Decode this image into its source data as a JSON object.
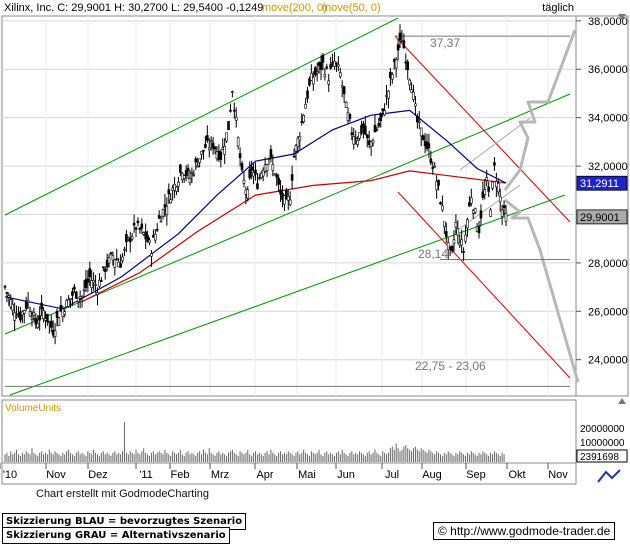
{
  "chart_data": {
    "type": "candlestick",
    "title": "Xilinx, Inc.",
    "ohlc_text": "C: 29,9001 H: 30,2700 L: 29,5400 -0,1249",
    "ma_legend": [
      {
        "label": "move(200, 0)",
        "color": "#cc0000"
      },
      {
        "label": "move(50, 0)",
        "color": "#000088"
      }
    ],
    "period": "täglich",
    "y_ticks": [
      "38,0000",
      "36,0000",
      "34,0000",
      "32,0000",
      "30,0000",
      "28,0000",
      "26,0000",
      "24,0000"
    ],
    "ylim": [
      22.5,
      38.2
    ],
    "x_labels": [
      "'10",
      "Nov",
      "Dez",
      "'11",
      "Feb",
      "Mrz",
      "Apr",
      "Mai",
      "Jun",
      "Jul",
      "Aug",
      "Sep",
      "Okt",
      "Nov"
    ],
    "price_boxes": [
      {
        "value": "31,2911",
        "y": 31.2911,
        "color": "#2222cc",
        "text": "#ffffff"
      },
      {
        "value": "29,9001",
        "y": 29.9001,
        "color": "#aaaaaa",
        "text": "#000000"
      }
    ],
    "annotations": [
      "37,37",
      "28,14",
      "22,75 - 23,06"
    ],
    "levels": [
      37.37,
      28.14,
      22.9
    ],
    "close_path": [
      [
        0,
        27.0
      ],
      [
        4,
        26.2
      ],
      [
        8,
        25.8
      ],
      [
        12,
        26.4
      ],
      [
        16,
        25.5
      ],
      [
        20,
        26.0
      ],
      [
        25,
        25.2
      ],
      [
        28,
        25.9
      ],
      [
        32,
        26.3
      ],
      [
        36,
        26.8
      ],
      [
        40,
        26.6
      ],
      [
        44,
        27.4
      ],
      [
        48,
        27.0
      ],
      [
        52,
        27.8
      ],
      [
        56,
        28.3
      ],
      [
        60,
        28.0
      ],
      [
        64,
        28.9
      ],
      [
        68,
        29.5
      ],
      [
        72,
        29.2
      ],
      [
        76,
        28.6
      ],
      [
        80,
        29.8
      ],
      [
        84,
        30.5
      ],
      [
        88,
        31.2
      ],
      [
        92,
        31.9
      ],
      [
        96,
        31.5
      ],
      [
        100,
        32.2
      ],
      [
        104,
        32.8
      ],
      [
        108,
        32.9
      ],
      [
        112,
        32.4
      ],
      [
        116,
        33.6
      ],
      [
        118,
        35.2
      ],
      [
        120,
        33.8
      ],
      [
        123,
        31.6
      ],
      [
        126,
        30.8
      ],
      [
        128,
        31.9
      ],
      [
        131,
        31.3
      ],
      [
        134,
        32.0
      ],
      [
        137,
        32.4
      ],
      [
        140,
        31.8
      ],
      [
        143,
        30.8
      ],
      [
        146,
        30.4
      ],
      [
        148,
        30.8
      ],
      [
        150,
        32.4
      ],
      [
        153,
        33.4
      ],
      [
        156,
        34.6
      ],
      [
        159,
        35.6
      ],
      [
        162,
        35.9
      ],
      [
        165,
        36.2
      ],
      [
        168,
        35.7
      ],
      [
        171,
        36.3
      ],
      [
        174,
        35.8
      ],
      [
        177,
        34.4
      ],
      [
        180,
        33.4
      ],
      [
        183,
        33.2
      ],
      [
        186,
        33.6
      ],
      [
        189,
        32.8
      ],
      [
        192,
        33.4
      ],
      [
        195,
        33.8
      ],
      [
        198,
        34.8
      ],
      [
        201,
        35.8
      ],
      [
        204,
        36.8
      ],
      [
        206,
        37.3
      ],
      [
        208,
        36.5
      ],
      [
        211,
        35.4
      ],
      [
        214,
        33.8
      ],
      [
        217,
        33.2
      ],
      [
        220,
        32.6
      ],
      [
        223,
        31.8
      ],
      [
        226,
        30.6
      ],
      [
        228,
        29.8
      ],
      [
        230,
        28.6
      ],
      [
        232,
        28.3
      ],
      [
        234,
        29.6
      ],
      [
        236,
        29.0
      ],
      [
        238,
        28.5
      ],
      [
        240,
        29.8
      ],
      [
        242,
        30.8
      ],
      [
        244,
        30.0
      ],
      [
        246,
        29.4
      ],
      [
        248,
        30.6
      ],
      [
        250,
        31.3
      ],
      [
        252,
        30.4
      ],
      [
        254,
        31.9
      ],
      [
        256,
        31.2
      ],
      [
        258,
        30.2
      ],
      [
        260,
        29.9
      ]
    ],
    "sma200_path": [
      [
        40,
        26.4
      ],
      [
        70,
        27.6
      ],
      [
        100,
        29.3
      ],
      [
        130,
        30.8
      ],
      [
        160,
        31.2
      ],
      [
        190,
        31.4
      ],
      [
        210,
        31.8
      ],
      [
        230,
        31.6
      ],
      [
        260,
        31.3
      ]
    ],
    "sma50_path": [
      [
        0,
        26.6
      ],
      [
        30,
        26.1
      ],
      [
        60,
        27.4
      ],
      [
        90,
        29.2
      ],
      [
        110,
        30.8
      ],
      [
        130,
        32.2
      ],
      [
        150,
        32.5
      ],
      [
        170,
        33.5
      ],
      [
        190,
        34.1
      ],
      [
        210,
        34.3
      ],
      [
        230,
        33.0
      ],
      [
        245,
        31.9
      ],
      [
        260,
        31.3
      ]
    ],
    "volume_label": "VolumeUnits",
    "volume_ticks": [
      "20000000",
      "10000000"
    ],
    "volume_last": "2391698",
    "volume_values": [
      5,
      6,
      4,
      7,
      5,
      6,
      8,
      5,
      4,
      6,
      5,
      7,
      6,
      5,
      9,
      6,
      5,
      4,
      6,
      7,
      5,
      6,
      5,
      8,
      6,
      5,
      7,
      6,
      5,
      4,
      6,
      5,
      7,
      8,
      6,
      5,
      4,
      6,
      7,
      5,
      6,
      5,
      4,
      7,
      6,
      5,
      8,
      6,
      5,
      4,
      6,
      7,
      5,
      6,
      5,
      4,
      6,
      7,
      5,
      6,
      5,
      7,
      26,
      6,
      5,
      7,
      6,
      5,
      8,
      6,
      5,
      7,
      9,
      6,
      5,
      4,
      6,
      7,
      5,
      6,
      7,
      6,
      5,
      8,
      6,
      5,
      4,
      7,
      6,
      5,
      6,
      8,
      5,
      4,
      6,
      7,
      5,
      6,
      5,
      4,
      6,
      7,
      5,
      8,
      6,
      5,
      9,
      6,
      5,
      4,
      6,
      7,
      5,
      6,
      5,
      4,
      6,
      7,
      8,
      6,
      5,
      4,
      7,
      6,
      5,
      6,
      8,
      5,
      4,
      6,
      7,
      5,
      6,
      5,
      4,
      6,
      7,
      5,
      8,
      6,
      5,
      4,
      6,
      7,
      5,
      6,
      5,
      7,
      6,
      5,
      4,
      6,
      7,
      5,
      6,
      8,
      6,
      5,
      4,
      7,
      6,
      5,
      6,
      8,
      5,
      4,
      6,
      7,
      5,
      6,
      5,
      4,
      6,
      7,
      5,
      8,
      6,
      5,
      4,
      6,
      7,
      5,
      6,
      5,
      7,
      6,
      5,
      4,
      6,
      7,
      5,
      6,
      8,
      6,
      5,
      4,
      7,
      6,
      5,
      6,
      9,
      10,
      8,
      12,
      9,
      7,
      8,
      10,
      11,
      9,
      8,
      7,
      9,
      10,
      8,
      7,
      9,
      8,
      7,
      6,
      8,
      7,
      6,
      5,
      7,
      6,
      5,
      4,
      6,
      5,
      7,
      6,
      5,
      4,
      6,
      5,
      7,
      6,
      5,
      4,
      6,
      5,
      7,
      6,
      5,
      4,
      6,
      5,
      7,
      6,
      5,
      4,
      6,
      5,
      7,
      6,
      5,
      4,
      6,
      5
    ]
  },
  "footer": {
    "credit": "Chart erstellt mit GodmodeCharting",
    "legend_blue": "Skizzierung BLAU = bevorzugtes Szenario",
    "legend_grey": "Skizzierung GRAU = Alternativszenario",
    "url": "© http://www.godmode-trader.de"
  }
}
